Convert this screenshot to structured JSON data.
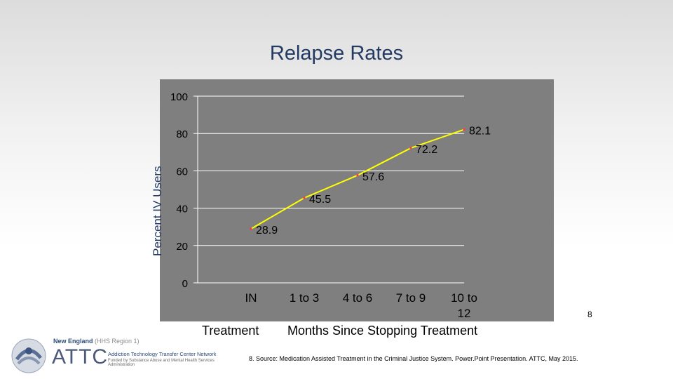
{
  "slide": {
    "title": "Relapse Rates",
    "footnote_number": "8",
    "source": "8. Source: Medication Assisted Treatment in the Criminal Justice System.  Power.Point Presentation. ATTC, May 2015."
  },
  "logo": {
    "region_name": "New England",
    "region_suffix": "(HHS Region 1)",
    "acronym": "ATTC",
    "network_name": "Addiction Technology Transfer Center Network",
    "funded_by": "Funded by Substance Abuse and Mental Health Services Administration"
  },
  "chart_data": {
    "type": "line",
    "title": "Relapse Rates",
    "ylabel": "Percent IV Users",
    "xlabel_left": "Treatment",
    "xlabel_right": "Months Since Stopping Treatment",
    "categories": [
      "IN",
      "1 to 3",
      "4 to 6",
      "7 to 9",
      "10 to 12"
    ],
    "values": [
      28.9,
      45.5,
      57.6,
      72.2,
      82.1
    ],
    "value_labels": [
      "28.9",
      "45.5",
      "57.6",
      "72.2",
      "82.1"
    ],
    "ylim": [
      0,
      100
    ],
    "yticks": [
      0,
      20,
      40,
      60,
      80,
      100
    ],
    "grid": true,
    "colors": {
      "plot_background": "#7f7f7f",
      "line": "#ffff00",
      "marker": "#ff3b3b",
      "gridline": "#ffffff",
      "labels": "#000000"
    }
  }
}
